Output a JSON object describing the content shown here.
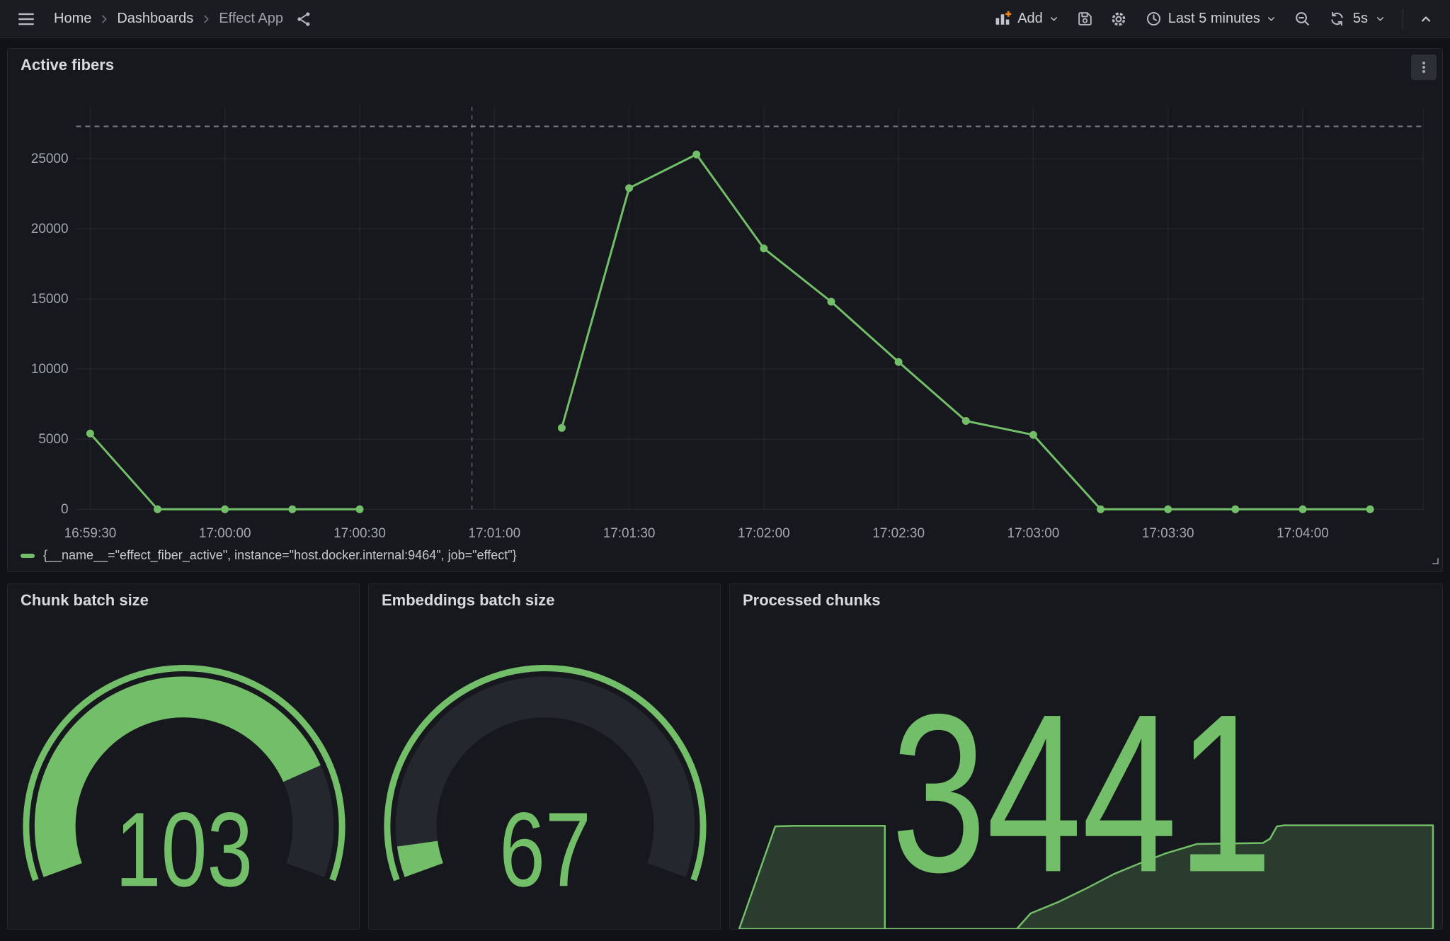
{
  "nav": {
    "breadcrumbs": [
      {
        "label": "Home"
      },
      {
        "label": "Dashboards"
      },
      {
        "label": "Effect App"
      }
    ],
    "actions": {
      "add_label": "Add",
      "time_range_label": "Last 5 minutes",
      "refresh_interval_label": "5s"
    }
  },
  "panels": {
    "active_fibers": {
      "title": "Active fibers",
      "legend": "{__name__=\"effect_fiber_active\", instance=\"host.docker.internal:9464\", job=\"effect\"}"
    },
    "chunk_batch_size": {
      "title": "Chunk batch size",
      "value": 103
    },
    "embeddings_batch_size": {
      "title": "Embeddings batch size",
      "value": 67
    },
    "processed_chunks": {
      "title": "Processed chunks",
      "value": 3441
    }
  },
  "colors": {
    "green": "#73BF69",
    "orange": "#F5820B",
    "page_bg": "#111217",
    "panel_bg": "#16181d",
    "gauge_track": "#24272d"
  },
  "chart_data": [
    {
      "type": "line",
      "title": "Active fibers",
      "x": [
        "16:59:30",
        "16:59:45",
        "17:00:00",
        "17:00:15",
        "17:00:30",
        "17:00:45",
        "17:01:00",
        "17:01:15",
        "17:01:30",
        "17:01:45",
        "17:02:00",
        "17:02:15",
        "17:02:30",
        "17:02:45",
        "17:03:00",
        "17:03:15",
        "17:03:30",
        "17:03:45",
        "17:04:00",
        "17:04:15"
      ],
      "series": [
        {
          "name": "{__name__=\"effect_fiber_active\", instance=\"host.docker.internal:9464\", job=\"effect\"}",
          "color": "#73BF69",
          "values": [
            5400,
            0,
            0,
            0,
            0,
            null,
            null,
            5800,
            22900,
            25300,
            18600,
            14800,
            10500,
            6300,
            5300,
            0,
            0,
            0,
            0,
            0
          ]
        }
      ],
      "x_tick_labels": [
        "16:59:30",
        "17:00:00",
        "17:00:30",
        "17:01:00",
        "17:01:30",
        "17:02:00",
        "17:02:30",
        "17:03:00",
        "17:03:30",
        "17:04:00"
      ],
      "y_ticks": [
        0,
        5000,
        10000,
        15000,
        20000,
        25000
      ],
      "ylim": [
        0,
        28700
      ],
      "threshold_dashed_line": 27300,
      "annotation_vline_time": "17:00:55",
      "grid": true,
      "legend_position": "bottom"
    },
    {
      "type": "gauge",
      "title": "Chunk batch size",
      "value": 103,
      "fill_fraction": 0.8,
      "color": "#73BF69"
    },
    {
      "type": "gauge",
      "title": "Embeddings batch size",
      "value": 67,
      "fill_fraction": 0.055,
      "color": "#73BF69"
    },
    {
      "type": "area",
      "title": "Processed chunks",
      "value": 3441,
      "color": "#73BF69",
      "points_frac": [
        [
          0,
          0
        ],
        [
          0.052,
          0.99
        ],
        [
          0.08,
          0.995
        ],
        [
          0.21,
          0.995
        ],
        [
          0.21,
          0
        ],
        [
          0.4,
          0
        ],
        [
          0.42,
          0.15
        ],
        [
          0.46,
          0.26
        ],
        [
          0.5,
          0.39
        ],
        [
          0.54,
          0.53
        ],
        [
          0.58,
          0.64
        ],
        [
          0.615,
          0.73
        ],
        [
          0.645,
          0.79
        ],
        [
          0.66,
          0.82
        ],
        [
          0.755,
          0.83
        ],
        [
          0.765,
          0.87
        ],
        [
          0.775,
          0.99
        ],
        [
          0.785,
          1.0
        ],
        [
          1.0,
          1.0
        ]
      ]
    }
  ]
}
